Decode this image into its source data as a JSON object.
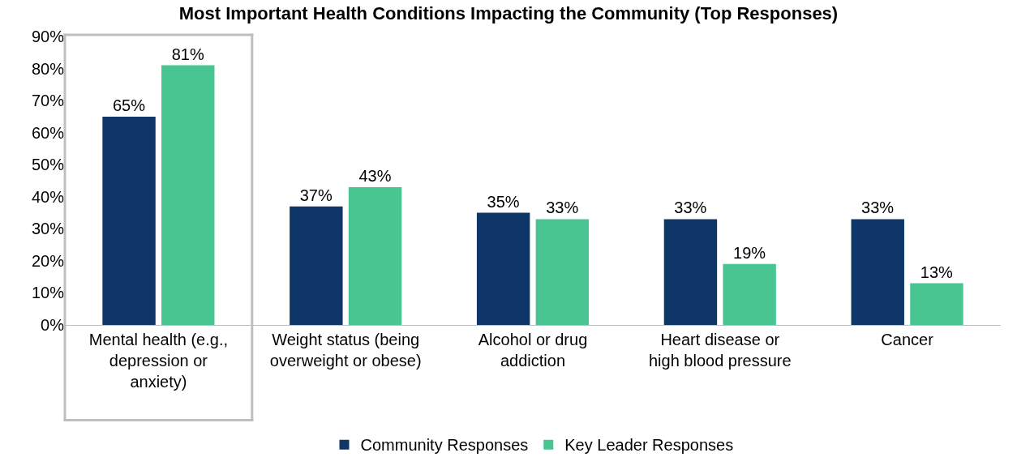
{
  "chart_data": {
    "type": "bar",
    "title": "Most Important Health Conditions Impacting the Community (Top Responses)",
    "categories": [
      "Mental health (e.g., depression or anxiety)",
      "Weight status (being overweight or obese)",
      "Alcohol or drug addiction",
      "Heart disease or high blood pressure",
      "Cancer"
    ],
    "series": [
      {
        "name": "Community Responses",
        "color": "#0e3768",
        "values": [
          65,
          37,
          35,
          33,
          33
        ],
        "value_labels": [
          "65%",
          "37%",
          "35%",
          "33%",
          "33%"
        ]
      },
      {
        "name": "Key Leader Responses",
        "color": "#48c591",
        "values": [
          81,
          43,
          33,
          19,
          13
        ],
        "value_labels": [
          "81%",
          "43%",
          "33%",
          "19%",
          "13%"
        ]
      }
    ],
    "ylim": [
      0,
      90
    ],
    "yticks": [
      {
        "value": 0,
        "label": "0%"
      },
      {
        "value": 10,
        "label": "10%"
      },
      {
        "value": 20,
        "label": "20%"
      },
      {
        "value": 30,
        "label": "30%"
      },
      {
        "value": 40,
        "label": "40%"
      },
      {
        "value": 50,
        "label": "50%"
      },
      {
        "value": 60,
        "label": "60%"
      },
      {
        "value": 70,
        "label": "70%"
      },
      {
        "value": 80,
        "label": "80%"
      },
      {
        "value": 90,
        "label": "90%"
      }
    ],
    "grid": false,
    "legend": "bottom"
  }
}
